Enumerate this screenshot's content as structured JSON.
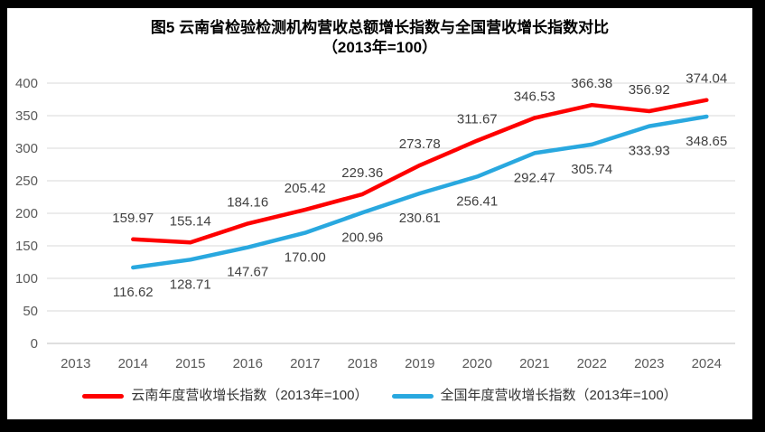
{
  "chart": {
    "title_line1": "图5  云南省检验检测机构营收总额增长指数与全国营收增长指数对比",
    "title_line2": "（2013年=100）"
  },
  "chart_data": {
    "type": "line",
    "title": "图5 云南省检验检测机构营收总额增长指数与全国营收增长指数对比（2013年=100）",
    "categories": [
      "2013",
      "2014",
      "2015",
      "2016",
      "2017",
      "2018",
      "2019",
      "2020",
      "2021",
      "2022",
      "2023",
      "2024"
    ],
    "y_ticks": [
      0,
      50,
      100,
      150,
      200,
      250,
      300,
      350,
      400
    ],
    "ylim": [
      0,
      400
    ],
    "grid": true,
    "legend_position": "bottom",
    "background_color": "#ffffff",
    "frame_color": "#000000",
    "gridline_color": "#d9d9d9",
    "axis_line_color": "#bfbfbf",
    "tick_label_color": "#595959",
    "data_label_color": "#404040",
    "series": [
      {
        "name": "云南年度营收增长指数（2013年=100）",
        "color": "#fe0000",
        "label_position": "above",
        "values": [
          null,
          159.97,
          155.14,
          184.16,
          205.42,
          229.36,
          273.78,
          311.67,
          346.53,
          366.38,
          356.92,
          374.04
        ],
        "labels": [
          "",
          "159.97",
          "155.14",
          "184.16",
          "205.42",
          "229.36",
          "273.78",
          "311.67",
          "346.53",
          "366.38",
          "356.92",
          "374.04"
        ]
      },
      {
        "name": "全国年度营收增长指数（2013年=100）",
        "color": "#29a8df",
        "label_position": "below",
        "values": [
          null,
          116.62,
          128.71,
          147.67,
          170.0,
          200.96,
          230.61,
          256.41,
          292.47,
          305.74,
          333.93,
          348.65
        ],
        "labels": [
          "",
          "116.62",
          "128.71",
          "147.67",
          "170.00",
          "200.96",
          "230.61",
          "256.41",
          "292.47",
          "305.74",
          "333.93",
          "348.65"
        ]
      }
    ]
  }
}
